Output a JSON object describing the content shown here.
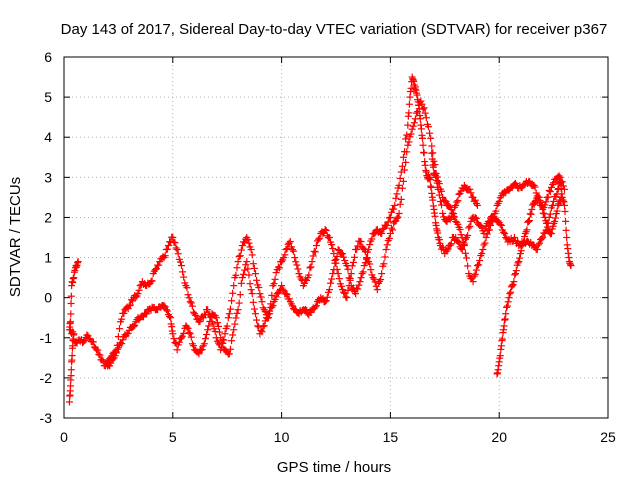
{
  "chart_data": {
    "type": "scatter",
    "title": "Day 143 of 2017, Sidereal Day-to-day VTEC variation (SDTVAR) for receiver p367",
    "xlabel": "GPS time / hours",
    "ylabel": "SDTVAR / TECUs",
    "xlim": [
      0,
      25
    ],
    "ylim": [
      -3,
      6
    ],
    "x_ticks": [
      "0",
      "5",
      "10",
      "15",
      "20",
      "25"
    ],
    "y_ticks": [
      "-3",
      "-2",
      "-1",
      "0",
      "1",
      "2",
      "3",
      "4",
      "5",
      "6"
    ],
    "grid": true,
    "marker": "+",
    "marker_color": "#ff0000",
    "series": [
      {
        "name": "SDTVAR",
        "points": [
          [
            0.25,
            -2.6
          ],
          [
            0.3,
            -2.2
          ],
          [
            0.35,
            -1.6
          ],
          [
            0.4,
            -1.2
          ],
          [
            0.45,
            -0.9
          ],
          [
            0.25,
            -0.8
          ],
          [
            0.3,
            -0.6
          ],
          [
            0.35,
            0.3
          ],
          [
            0.45,
            0.5
          ],
          [
            0.55,
            0.8
          ],
          [
            0.65,
            0.9
          ],
          [
            0.5,
            -1.1
          ],
          [
            0.7,
            -1.05
          ],
          [
            0.9,
            -1.1
          ],
          [
            1.1,
            -0.95
          ],
          [
            1.3,
            -1.1
          ],
          [
            1.5,
            -1.3
          ],
          [
            1.7,
            -1.55
          ],
          [
            1.9,
            -1.7
          ],
          [
            2.1,
            -1.7
          ],
          [
            2.3,
            -1.5
          ],
          [
            2.5,
            -1.25
          ],
          [
            2.7,
            -1.05
          ],
          [
            2.9,
            -0.9
          ],
          [
            3.1,
            -0.75
          ],
          [
            3.3,
            -0.6
          ],
          [
            3.5,
            -0.5
          ],
          [
            3.7,
            -0.4
          ],
          [
            3.9,
            -0.3
          ],
          [
            4.1,
            -0.25
          ],
          [
            4.3,
            -0.3
          ],
          [
            4.5,
            -0.2
          ],
          [
            4.7,
            -0.3
          ],
          [
            4.9,
            -0.5
          ],
          [
            5.0,
            -0.9
          ],
          [
            5.2,
            -1.3
          ],
          [
            5.4,
            -1.0
          ],
          [
            5.6,
            -0.7
          ],
          [
            5.8,
            -0.9
          ],
          [
            6.0,
            -1.3
          ],
          [
            6.2,
            -1.4
          ],
          [
            6.4,
            -1.2
          ],
          [
            6.6,
            -0.8
          ],
          [
            6.8,
            -0.4
          ],
          [
            7.0,
            -0.5
          ],
          [
            7.2,
            -1.0
          ],
          [
            7.4,
            -1.3
          ],
          [
            7.6,
            -1.4
          ],
          [
            7.8,
            -0.8
          ],
          [
            8.0,
            -0.3
          ],
          [
            8.2,
            0.5
          ],
          [
            8.4,
            0.9
          ],
          [
            8.6,
            0.2
          ],
          [
            8.8,
            -0.4
          ],
          [
            9.0,
            -0.9
          ],
          [
            9.2,
            -0.7
          ],
          [
            9.4,
            -0.4
          ],
          [
            9.6,
            -0.2
          ],
          [
            9.8,
            0.1
          ],
          [
            10.0,
            0.3
          ],
          [
            10.2,
            0.1
          ],
          [
            10.4,
            -0.1
          ],
          [
            10.6,
            -0.3
          ],
          [
            10.8,
            -0.4
          ],
          [
            11.0,
            -0.3
          ],
          [
            11.2,
            -0.4
          ],
          [
            11.4,
            -0.3
          ],
          [
            11.6,
            -0.2
          ],
          [
            11.8,
            0.0
          ],
          [
            12.0,
            -0.1
          ],
          [
            12.2,
            0.2
          ],
          [
            12.4,
            0.7
          ],
          [
            12.6,
            1.2
          ],
          [
            12.8,
            1.1
          ],
          [
            13.0,
            0.8
          ],
          [
            13.2,
            0.3
          ],
          [
            13.4,
            0.1
          ],
          [
            13.6,
            0.4
          ],
          [
            13.8,
            0.8
          ],
          [
            14.0,
            1.2
          ],
          [
            14.2,
            1.6
          ],
          [
            14.4,
            1.7
          ],
          [
            14.6,
            1.6
          ],
          [
            14.8,
            1.8
          ],
          [
            15.0,
            2.0
          ],
          [
            15.2,
            2.3
          ],
          [
            15.4,
            2.8
          ],
          [
            15.6,
            3.5
          ],
          [
            15.8,
            4.3
          ],
          [
            15.9,
            5.0
          ],
          [
            16.0,
            5.5
          ],
          [
            16.1,
            5.3
          ],
          [
            16.2,
            5.1
          ],
          [
            16.3,
            4.8
          ],
          [
            16.4,
            4.3
          ],
          [
            16.5,
            3.8
          ],
          [
            16.6,
            3.3
          ],
          [
            16.7,
            3.0
          ],
          [
            16.8,
            3.0
          ],
          [
            16.9,
            2.6
          ],
          [
            17.0,
            2.2
          ],
          [
            17.1,
            1.8
          ],
          [
            17.2,
            1.5
          ],
          [
            17.3,
            1.3
          ],
          [
            17.5,
            1.1
          ],
          [
            17.7,
            1.3
          ],
          [
            17.9,
            1.5
          ],
          [
            18.1,
            1.4
          ],
          [
            18.3,
            1.2
          ],
          [
            18.5,
            1.5
          ],
          [
            18.7,
            1.9
          ],
          [
            18.9,
            2.0
          ],
          [
            19.1,
            1.8
          ],
          [
            19.3,
            1.6
          ],
          [
            19.5,
            1.9
          ],
          [
            19.7,
            2.0
          ],
          [
            19.9,
            1.9
          ],
          [
            20.1,
            1.8
          ],
          [
            20.3,
            1.5
          ],
          [
            20.5,
            1.4
          ],
          [
            20.7,
            1.5
          ],
          [
            20.9,
            1.3
          ],
          [
            21.1,
            1.35
          ],
          [
            21.3,
            1.4
          ],
          [
            21.5,
            1.3
          ],
          [
            21.7,
            1.2
          ],
          [
            21.9,
            1.45
          ],
          [
            22.1,
            1.6
          ],
          [
            22.3,
            2.0
          ],
          [
            22.5,
            2.4
          ],
          [
            22.7,
            2.7
          ],
          [
            22.8,
            2.9
          ],
          [
            22.9,
            2.5
          ],
          [
            23.0,
            2.3
          ],
          [
            23.1,
            1.5
          ],
          [
            23.2,
            1.0
          ],
          [
            23.3,
            0.8
          ],
          [
            2.0,
            -1.6
          ],
          [
            2.2,
            -1.45
          ],
          [
            2.4,
            -1.35
          ],
          [
            2.6,
            -0.6
          ],
          [
            2.8,
            -0.3
          ],
          [
            3.0,
            -0.2
          ],
          [
            3.2,
            0.0
          ],
          [
            3.4,
            0.1
          ],
          [
            3.6,
            0.4
          ],
          [
            3.8,
            0.3
          ],
          [
            4.0,
            0.4
          ],
          [
            4.2,
            0.7
          ],
          [
            4.4,
            0.9
          ],
          [
            4.6,
            1.0
          ],
          [
            4.8,
            1.3
          ],
          [
            5.0,
            1.5
          ],
          [
            5.2,
            1.2
          ],
          [
            5.4,
            0.8
          ],
          [
            5.6,
            0.3
          ],
          [
            5.8,
            -0.1
          ],
          [
            6.0,
            -0.4
          ],
          [
            6.2,
            -0.6
          ],
          [
            6.4,
            -0.5
          ],
          [
            6.6,
            -0.3
          ],
          [
            6.8,
            -0.6
          ],
          [
            7.0,
            -1.0
          ],
          [
            7.2,
            -1.3
          ],
          [
            7.4,
            -0.9
          ],
          [
            7.6,
            -0.4
          ],
          [
            7.8,
            0.3
          ],
          [
            8.0,
            0.9
          ],
          [
            8.2,
            1.3
          ],
          [
            8.4,
            1.5
          ],
          [
            8.6,
            1.2
          ],
          [
            8.8,
            0.6
          ],
          [
            9.0,
            0.1
          ],
          [
            9.2,
            -0.3
          ],
          [
            9.4,
            -0.5
          ],
          [
            9.6,
            0.3
          ],
          [
            9.8,
            0.7
          ],
          [
            10.0,
            0.9
          ],
          [
            10.2,
            1.2
          ],
          [
            10.4,
            1.4
          ],
          [
            10.6,
            1.0
          ],
          [
            10.8,
            0.6
          ],
          [
            11.0,
            0.3
          ],
          [
            11.2,
            0.5
          ],
          [
            11.4,
            0.9
          ],
          [
            11.6,
            1.3
          ],
          [
            11.8,
            1.6
          ],
          [
            12.0,
            1.7
          ],
          [
            12.2,
            1.5
          ],
          [
            12.4,
            1.1
          ],
          [
            12.6,
            0.6
          ],
          [
            12.8,
            0.2
          ],
          [
            13.0,
            0.0
          ],
          [
            13.2,
            0.6
          ],
          [
            13.4,
            1.2
          ],
          [
            13.6,
            1.4
          ],
          [
            13.8,
            1.2
          ],
          [
            14.0,
            0.9
          ],
          [
            14.2,
            0.5
          ],
          [
            14.4,
            0.2
          ],
          [
            14.6,
            0.6
          ],
          [
            14.8,
            1.2
          ],
          [
            15.0,
            1.6
          ],
          [
            15.2,
            1.9
          ],
          [
            15.4,
            2.1
          ],
          [
            15.6,
            2.9
          ],
          [
            15.8,
            3.8
          ],
          [
            16.0,
            4.2
          ],
          [
            16.2,
            4.6
          ],
          [
            16.4,
            4.9
          ],
          [
            16.6,
            4.6
          ],
          [
            16.8,
            4.1
          ],
          [
            17.0,
            3.4
          ],
          [
            17.2,
            2.9
          ],
          [
            17.4,
            2.5
          ],
          [
            17.6,
            2.3
          ],
          [
            17.8,
            2.2
          ],
          [
            18.0,
            1.9
          ],
          [
            18.2,
            1.7
          ],
          [
            18.4,
            1.3
          ],
          [
            18.6,
            0.6
          ],
          [
            18.8,
            0.4
          ],
          [
            19.0,
            0.8
          ],
          [
            19.2,
            1.1
          ],
          [
            19.4,
            1.5
          ],
          [
            19.6,
            1.8
          ],
          [
            19.8,
            2.1
          ],
          [
            20.0,
            2.4
          ],
          [
            20.2,
            2.6
          ],
          [
            20.4,
            2.7
          ],
          [
            20.6,
            2.75
          ],
          [
            20.8,
            2.8
          ],
          [
            21.0,
            2.75
          ],
          [
            21.2,
            2.85
          ],
          [
            21.4,
            2.9
          ],
          [
            21.6,
            2.8
          ],
          [
            21.8,
            2.5
          ],
          [
            22.0,
            2.2
          ],
          [
            22.2,
            2.5
          ],
          [
            22.4,
            2.75
          ],
          [
            22.6,
            2.95
          ],
          [
            22.8,
            3.0
          ],
          [
            23.0,
            2.7
          ],
          [
            19.9,
            -1.9
          ],
          [
            20.0,
            -1.6
          ],
          [
            20.1,
            -1.2
          ],
          [
            20.2,
            -0.8
          ],
          [
            20.3,
            -0.4
          ],
          [
            20.45,
            0.0
          ],
          [
            20.6,
            0.3
          ],
          [
            20.75,
            0.6
          ],
          [
            20.9,
            0.9
          ],
          [
            21.05,
            1.3
          ],
          [
            21.2,
            1.6
          ],
          [
            21.35,
            1.9
          ],
          [
            21.5,
            2.2
          ],
          [
            21.65,
            2.4
          ],
          [
            21.8,
            2.5
          ],
          [
            21.95,
            2.3
          ],
          [
            22.1,
            2.0
          ],
          [
            22.25,
            1.7
          ],
          [
            22.4,
            1.6
          ],
          [
            22.55,
            1.9
          ],
          [
            22.7,
            2.3
          ],
          [
            22.85,
            2.5
          ],
          [
            16.9,
            3.6
          ],
          [
            17.0,
            3.1
          ],
          [
            17.1,
            3.0
          ],
          [
            17.2,
            2.7
          ],
          [
            17.4,
            2.1
          ],
          [
            17.6,
            1.9
          ],
          [
            17.8,
            2.0
          ],
          [
            18.0,
            2.3
          ],
          [
            18.2,
            2.6
          ],
          [
            18.4,
            2.8
          ],
          [
            18.6,
            2.7
          ],
          [
            18.8,
            2.5
          ],
          [
            19.0,
            2.3
          ]
        ]
      }
    ]
  }
}
